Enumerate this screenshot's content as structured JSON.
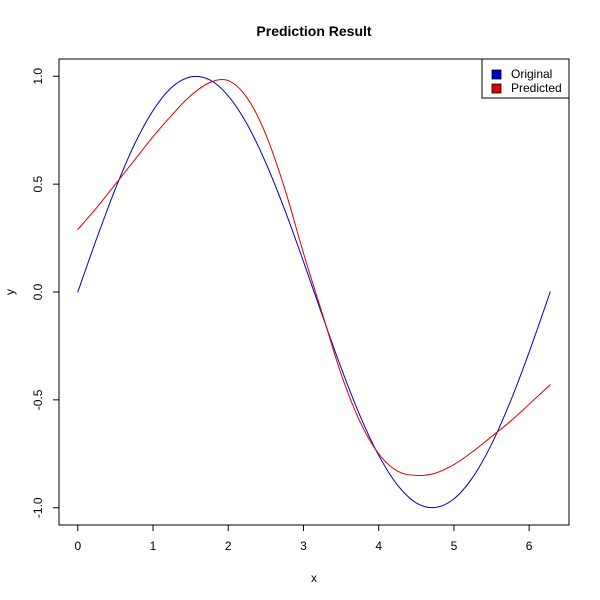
{
  "chart_data": {
    "type": "line",
    "title": "Prediction Result",
    "xlabel": "x",
    "ylabel": "y",
    "xlim": [
      -0.25,
      6.53
    ],
    "ylim": [
      -1.08,
      1.08
    ],
    "x_ticks": [
      0,
      1,
      2,
      3,
      4,
      5,
      6
    ],
    "x_tick_labels": [
      "0",
      "1",
      "2",
      "3",
      "4",
      "5",
      "6"
    ],
    "y_ticks": [
      -1.0,
      -0.5,
      0.0,
      0.5,
      1.0
    ],
    "y_tick_labels": [
      "-1.0",
      "-0.5",
      "0.0",
      "0.5",
      "1.0"
    ],
    "grid": false,
    "legend": {
      "position": "top-right",
      "entries": [
        {
          "label": "Original",
          "color": "#0000cc"
        },
        {
          "label": "Predicted",
          "color": "#dd0000"
        }
      ]
    },
    "x": [
      0.0,
      0.25,
      0.5,
      0.75,
      1.0,
      1.25,
      1.5,
      1.75,
      2.0,
      2.25,
      2.5,
      2.75,
      3.0,
      3.25,
      3.5,
      3.75,
      4.0,
      4.25,
      4.5,
      4.75,
      5.0,
      5.25,
      5.5,
      5.75,
      6.0,
      6.28
    ],
    "series": [
      {
        "name": "Original",
        "color": "#0000cc",
        "values": [
          0.0,
          0.247,
          0.479,
          0.682,
          0.841,
          0.949,
          0.997,
          0.984,
          0.909,
          0.778,
          0.598,
          0.382,
          0.141,
          -0.108,
          -0.351,
          -0.572,
          -0.757,
          -0.895,
          -0.978,
          -0.999,
          -0.959,
          -0.859,
          -0.706,
          -0.508,
          -0.279,
          0.0
        ]
      },
      {
        "name": "Predicted",
        "color": "#dd0000",
        "values": [
          0.29,
          0.39,
          0.5,
          0.61,
          0.72,
          0.82,
          0.91,
          0.97,
          0.98,
          0.9,
          0.73,
          0.48,
          0.18,
          -0.1,
          -0.38,
          -0.6,
          -0.75,
          -0.83,
          -0.85,
          -0.84,
          -0.8,
          -0.74,
          -0.67,
          -0.6,
          -0.52,
          -0.43
        ]
      }
    ]
  }
}
